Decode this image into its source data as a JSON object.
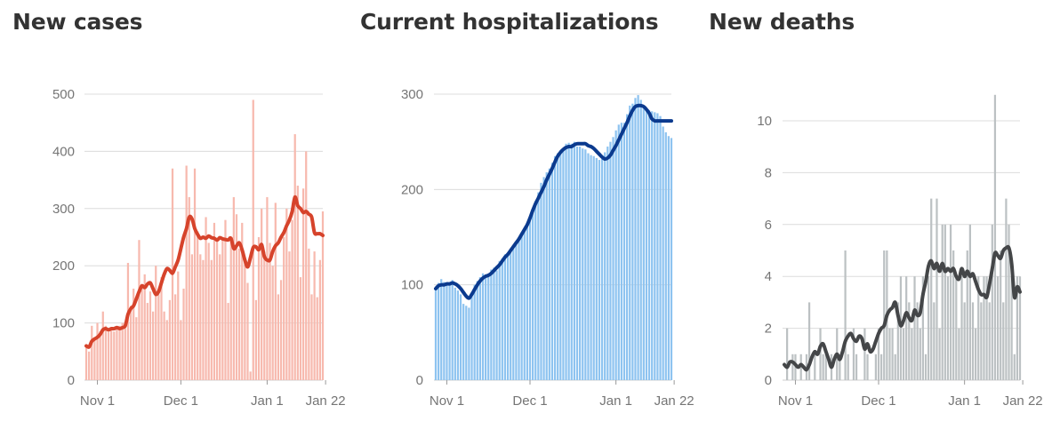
{
  "colors": {
    "cases_bar": "#f7b9ae",
    "cases_line": "#d6432b",
    "hosp_bar": "#8dc3f0",
    "hosp_line": "#0b3a8e",
    "deaths_bar": "#bcc1c3",
    "deaths_line": "#444648",
    "grid": "#dcdcdc",
    "tick": "#757575",
    "title": "#333333"
  },
  "chart_data": [
    {
      "type": "bar",
      "title": "New cases",
      "ylim": [
        0,
        500
      ],
      "yticks": [
        "0",
        "100",
        "200",
        "300",
        "400",
        "500"
      ],
      "xticks": [
        {
          "label": "Nov 1",
          "day": 4
        },
        {
          "label": "Dec 1",
          "day": 34
        },
        {
          "label": "Jan 1",
          "day": 65
        },
        {
          "label": "Jan 22",
          "day": 86
        }
      ],
      "x_start": "Oct 28",
      "x_end": "Jan 22",
      "series": [
        {
          "kind": "bar",
          "values": [
            60,
            50,
            95,
            70,
            100,
            85,
            120,
            95,
            85,
            90,
            85,
            90,
            95,
            100,
            90,
            205,
            130,
            160,
            110,
            245,
            165,
            185,
            135,
            155,
            120,
            200,
            150,
            180,
            120,
            105,
            140,
            370,
            150,
            190,
            105,
            160,
            375,
            320,
            220,
            370,
            260,
            220,
            210,
            285,
            240,
            210,
            275,
            245,
            220,
            250,
            280,
            135,
            245,
            320,
            290,
            230,
            275,
            210,
            170,
            15,
            490,
            140,
            250,
            300,
            225,
            320,
            240,
            200,
            310,
            150,
            175,
            250,
            300,
            225,
            280,
            430,
            340,
            180,
            335,
            400,
            230,
            150,
            225,
            145,
            210,
            295
          ]
        },
        {
          "kind": "line",
          "values": [
            60,
            58,
            68,
            72,
            75,
            80,
            88,
            90,
            88,
            90,
            90,
            92,
            90,
            92,
            95,
            115,
            125,
            130,
            142,
            155,
            165,
            162,
            168,
            170,
            160,
            150,
            155,
            170,
            185,
            195,
            192,
            187,
            198,
            210,
            230,
            250,
            265,
            285,
            282,
            265,
            255,
            248,
            250,
            248,
            252,
            249,
            248,
            245,
            249,
            247,
            246,
            245,
            248,
            230,
            235,
            240,
            228,
            210,
            198,
            214,
            232,
            233,
            228,
            237,
            216,
            210,
            210,
            225,
            235,
            240,
            250,
            258,
            270,
            280,
            295,
            320,
            305,
            300,
            293,
            295,
            290,
            285,
            258,
            256,
            256,
            253
          ]
        }
      ]
    },
    {
      "type": "bar",
      "title": "Current hospitalizations",
      "ylim": [
        0,
        300
      ],
      "yticks": [
        "0",
        "100",
        "200",
        "300"
      ],
      "xticks": [
        {
          "label": "Nov 1",
          "day": 4
        },
        {
          "label": "Dec 1",
          "day": 34
        },
        {
          "label": "Jan 1",
          "day": 65
        },
        {
          "label": "Jan 22",
          "day": 86
        }
      ],
      "x_start": "Oct 28",
      "x_end": "Jan 22",
      "series": [
        {
          "kind": "bar",
          "values": [
            98,
            102,
            106,
            103,
            102,
            101,
            105,
            97,
            94,
            90,
            80,
            78,
            76,
            88,
            100,
            104,
            108,
            112,
            110,
            109,
            116,
            118,
            115,
            125,
            128,
            132,
            131,
            136,
            140,
            145,
            147,
            153,
            158,
            163,
            171,
            180,
            188,
            197,
            207,
            213,
            218,
            222,
            228,
            235,
            238,
            241,
            242,
            248,
            249,
            248,
            250,
            245,
            245,
            243,
            242,
            238,
            236,
            235,
            233,
            231,
            232,
            239,
            245,
            250,
            255,
            262,
            268,
            270,
            270,
            279,
            288,
            290,
            296,
            299,
            294,
            286,
            285,
            283,
            282,
            281,
            280,
            277,
            266,
            260,
            256,
            254
          ]
        },
        {
          "kind": "line",
          "values": [
            96,
            99,
            100,
            100,
            101,
            101,
            102,
            101,
            99,
            96,
            92,
            88,
            86,
            90,
            95,
            100,
            104,
            107,
            109,
            110,
            112,
            115,
            118,
            121,
            125,
            129,
            132,
            136,
            140,
            144,
            148,
            153,
            158,
            163,
            170,
            178,
            185,
            191,
            197,
            203,
            210,
            216,
            222,
            229,
            235,
            239,
            242,
            244,
            245,
            245,
            247,
            248,
            248,
            248,
            248,
            246,
            245,
            243,
            240,
            237,
            234,
            232,
            233,
            236,
            241,
            246,
            252,
            258,
            264,
            270,
            277,
            283,
            287,
            288,
            288,
            287,
            284,
            280,
            274,
            272,
            272,
            272,
            272,
            272,
            272,
            272
          ]
        }
      ]
    },
    {
      "type": "bar",
      "title": "New deaths",
      "ylim": [
        0,
        11
      ],
      "yticks": [
        "0",
        "2",
        "4",
        "6",
        "8",
        "10"
      ],
      "xticks": [
        {
          "label": "Nov 1",
          "day": 4
        },
        {
          "label": "Dec 1",
          "day": 34
        },
        {
          "label": "Jan 1",
          "day": 65
        },
        {
          "label": "Jan 22",
          "day": 86
        }
      ],
      "x_start": "Oct 28",
      "x_end": "Jan 22",
      "series": [
        {
          "kind": "bar",
          "values": [
            0,
            2,
            0,
            1,
            1,
            0,
            1,
            0,
            1,
            3,
            0,
            1,
            0,
            2,
            1,
            1,
            0,
            1,
            0,
            2,
            1,
            0,
            5,
            1,
            0,
            2,
            1,
            0,
            0,
            2,
            1,
            0,
            0,
            1,
            2,
            1,
            5,
            5,
            2,
            2,
            1,
            3,
            4,
            2,
            4,
            3,
            2,
            4,
            3,
            2,
            4,
            1,
            4,
            7,
            3,
            7,
            2,
            6,
            6,
            4,
            6,
            5,
            4,
            2,
            4,
            3,
            5,
            6,
            3,
            2,
            4,
            3,
            4,
            4,
            3,
            6,
            11,
            4,
            5,
            3,
            7,
            6,
            4,
            1,
            4,
            4
          ]
        },
        {
          "kind": "line",
          "values": [
            0.6,
            0.5,
            0.7,
            0.7,
            0.6,
            0.5,
            0.6,
            0.5,
            0.4,
            0.6,
            0.9,
            1.1,
            1.0,
            1.3,
            1.4,
            1.1,
            0.8,
            0.5,
            0.8,
            1.0,
            0.8,
            1.1,
            1.5,
            1.7,
            1.8,
            1.6,
            1.5,
            1.7,
            1.6,
            1.2,
            1.4,
            1.1,
            1.2,
            1.5,
            1.8,
            2.0,
            2.1,
            2.5,
            2.7,
            2.8,
            3.0,
            2.5,
            2.1,
            2.3,
            2.6,
            2.4,
            2.3,
            2.7,
            2.5,
            2.6,
            3.3,
            3.8,
            4.4,
            4.6,
            4.3,
            4.5,
            4.2,
            4.5,
            4.2,
            4.3,
            4.2,
            4.3,
            4.0,
            3.9,
            4.3,
            4.0,
            4.2,
            4.0,
            4.1,
            3.8,
            3.5,
            3.3,
            3.3,
            3.2,
            3.7,
            4.3,
            4.9,
            4.8,
            4.7,
            5.0,
            5.1,
            5.1,
            4.5,
            3.2,
            3.6,
            3.4
          ]
        }
      ]
    }
  ]
}
